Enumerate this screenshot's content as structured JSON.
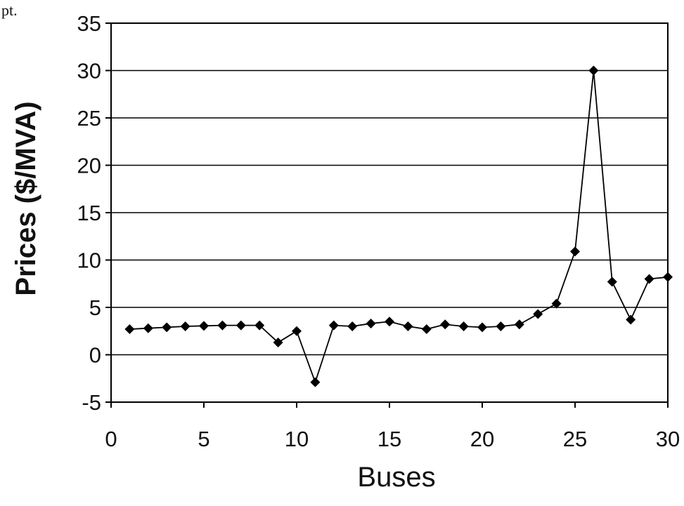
{
  "page_fragment": "pt.",
  "chart_data": {
    "type": "line",
    "title": "",
    "xlabel": "Buses",
    "ylabel": "Prices ($/MVA)",
    "xlim": [
      0,
      30
    ],
    "ylim": [
      -5,
      35
    ],
    "xticks": [
      0,
      5,
      10,
      15,
      20,
      25,
      30
    ],
    "yticks": [
      -5,
      0,
      5,
      10,
      15,
      20,
      25,
      30,
      35
    ],
    "grid": "horizontal",
    "marker": "diamond",
    "line_color": "#000000",
    "x": [
      1,
      2,
      3,
      4,
      5,
      6,
      7,
      8,
      9,
      10,
      11,
      12,
      13,
      14,
      15,
      16,
      17,
      18,
      19,
      20,
      21,
      22,
      23,
      24,
      25,
      26,
      27,
      28,
      29,
      30
    ],
    "series": [
      {
        "values": [
          2.7,
          2.8,
          2.9,
          3.0,
          3.05,
          3.1,
          3.1,
          3.1,
          1.3,
          2.5,
          -2.9,
          3.1,
          3.0,
          3.3,
          3.5,
          3.0,
          2.7,
          3.2,
          3.0,
          2.9,
          3.0,
          3.2,
          4.3,
          5.4,
          10.9,
          30.0,
          7.7,
          3.7,
          8.0,
          8.2
        ]
      }
    ]
  }
}
